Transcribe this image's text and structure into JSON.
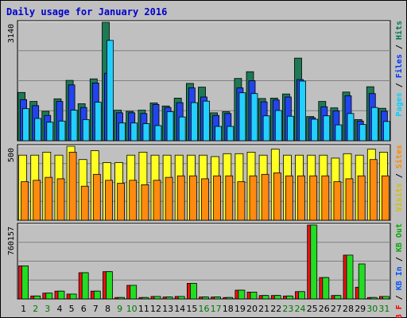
{
  "chart_data": {
    "type": "bar",
    "title": "Daily usage for January 2016",
    "title_color": "#0000cc",
    "days": [
      1,
      2,
      3,
      4,
      5,
      6,
      7,
      8,
      9,
      10,
      11,
      12,
      13,
      14,
      15,
      16,
      17,
      18,
      19,
      20,
      21,
      22,
      23,
      24,
      25,
      26,
      27,
      28,
      29,
      30,
      31
    ],
    "weekend_days": [
      2,
      3,
      9,
      10,
      16,
      17,
      23,
      24,
      30,
      31
    ],
    "day_colors": {
      "weekday": "#000000",
      "weekend": "#007700"
    },
    "panels": [
      {
        "name": "top",
        "max_label": "3140",
        "ymax": 3140,
        "legend": [
          {
            "text": "Pages",
            "color": "#00d0ff"
          },
          {
            "text": " / ",
            "color": "#000000"
          },
          {
            "text": "Files",
            "color": "#0033ff"
          },
          {
            "text": " / ",
            "color": "#000000"
          },
          {
            "text": "Hits",
            "color": "#007755"
          }
        ],
        "series": [
          {
            "name": "Hits",
            "color": "#1e7a55",
            "values": [
              1280,
              1040,
              780,
              1110,
              1600,
              980,
              1640,
              3140,
              810,
              780,
              810,
              1000,
              920,
              1130,
              1520,
              1420,
              740,
              770,
              1650,
              1830,
              1120,
              1130,
              1240,
              2190,
              640,
              1040,
              870,
              1290,
              560,
              1430,
              860
            ]
          },
          {
            "name": "Files",
            "color": "#2244ee",
            "values": [
              1090,
              930,
              670,
              1040,
              1480,
              880,
              1530,
              1790,
              740,
              740,
              720,
              960,
              880,
              1010,
              1400,
              1160,
              670,
              720,
              1400,
              1590,
              1030,
              1080,
              1160,
              1620,
              610,
              900,
              790,
              1190,
              520,
              1250,
              780
            ]
          },
          {
            "name": "Pages",
            "color": "#22d0ff",
            "values": [
              850,
              590,
              490,
              520,
              810,
              560,
              1020,
              2660,
              470,
              470,
              450,
              400,
              770,
              630,
              1010,
              1050,
              380,
              380,
              1270,
              1250,
              660,
              800,
              650,
              1580,
              570,
              660,
              420,
              720,
              430,
              880,
              510
            ]
          }
        ]
      },
      {
        "name": "middle",
        "max_label": "500",
        "ymax": 500,
        "legend": [
          {
            "text": "Visits",
            "color": "#d0c000"
          },
          {
            "text": " / ",
            "color": "#000000"
          },
          {
            "text": "Sites",
            "color": "#ff8800"
          }
        ],
        "series": [
          {
            "name": "Visits",
            "color": "#ffff22",
            "values": [
              440,
              440,
              460,
              440,
              500,
              410,
              470,
              390,
              390,
              440,
              460,
              440,
              440,
              440,
              440,
              440,
              430,
              450,
              450,
              460,
              440,
              480,
              440,
              440,
              440,
              440,
              420,
              450,
              440,
              480,
              460
            ]
          },
          {
            "name": "Sites",
            "color": "#ff8a10",
            "values": [
              260,
              270,
              290,
              280,
              460,
              230,
              310,
              270,
              250,
              270,
              240,
              270,
              290,
              300,
              300,
              280,
              300,
              300,
              260,
              300,
              310,
              320,
              300,
              300,
              300,
              300,
              260,
              280,
              300,
              410,
              300
            ]
          }
        ]
      },
      {
        "name": "bottom",
        "max_label": "760157",
        "ymax": 760157,
        "legend": [
          {
            "text": "KB F",
            "color": "#ee0000"
          },
          {
            "text": " / ",
            "color": "#000000"
          },
          {
            "text": "KB In",
            "color": "#0055ff"
          },
          {
            "text": " / ",
            "color": "#000000"
          },
          {
            "text": "KB Out",
            "color": "#00aa00"
          }
        ],
        "series": [
          {
            "name": "KB F",
            "color": "#ee1111",
            "values": [
              340000,
              30000,
              60000,
              80000,
              50000,
              270000,
              80000,
              280000,
              15000,
              140000,
              15000,
              25000,
              20000,
              25000,
              160000,
              20000,
              20000,
              15000,
              90000,
              70000,
              35000,
              35000,
              30000,
              75000,
              760157,
              220000,
              35000,
              450000,
              120000,
              15000,
              25000
            ]
          },
          {
            "name": "KB Out",
            "color": "#22dd22",
            "values": [
              340000,
              30000,
              60000,
              80000,
              50000,
              270000,
              80000,
              280000,
              15000,
              140000,
              15000,
              25000,
              20000,
              25000,
              160000,
              20000,
              20000,
              15000,
              90000,
              70000,
              35000,
              35000,
              30000,
              75000,
              760157,
              220000,
              35000,
              450000,
              360000,
              15000,
              25000
            ]
          }
        ]
      }
    ]
  }
}
